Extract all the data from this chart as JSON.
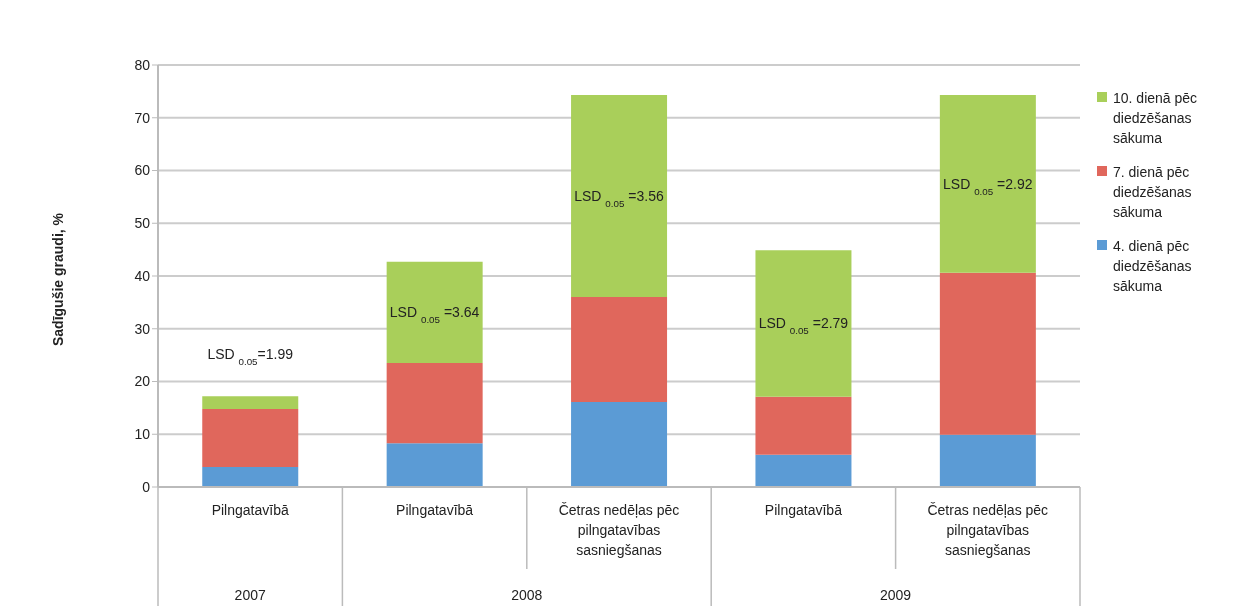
{
  "chart_data": {
    "type": "bar",
    "stacked": true,
    "ylabel": "Sadīgušie graudi, %",
    "categories": [
      "Pilngatavībā",
      "Pilngatavībā",
      "Četras nedēļas pēc pilngatavības sasniegšanas",
      "Pilngatavībā",
      "Četras nedēļas pēc pilngatavības sasniegšanas"
    ],
    "series": [
      {
        "name": "4. dienā pēc diedzēšanas sākuma",
        "color": "#5b9bd5",
        "values": [
          3.8,
          8.3,
          16.1,
          6.1,
          9.9
        ]
      },
      {
        "name": "7. dienā pēc diedzēšanas sākuma",
        "color": "#e0675c",
        "values": [
          11,
          15.2,
          19.9,
          11,
          30.7
        ]
      },
      {
        "name": "10. dienā pēc diedzēšanas sākuma",
        "color": "#a9cf5a",
        "values": [
          2.4,
          19.2,
          38.3,
          27.8,
          33.7
        ]
      }
    ],
    "ylim": [
      0,
      80
    ],
    "yticks": [
      0,
      10,
      20,
      30,
      40,
      50,
      60,
      70,
      80
    ],
    "grid": "y",
    "legend": "right",
    "annotations": [
      "LSD $_{0.05}$=1.99",
      "LSD $_{0.05}$ =3.64",
      "LSD $_{0.05}$ =3.56",
      "LSD $_{0.05}$ =2.79",
      "LSD $_{0.05}$ =2.92",
      "2007",
      "2008",
      "2009"
    ]
  }
}
